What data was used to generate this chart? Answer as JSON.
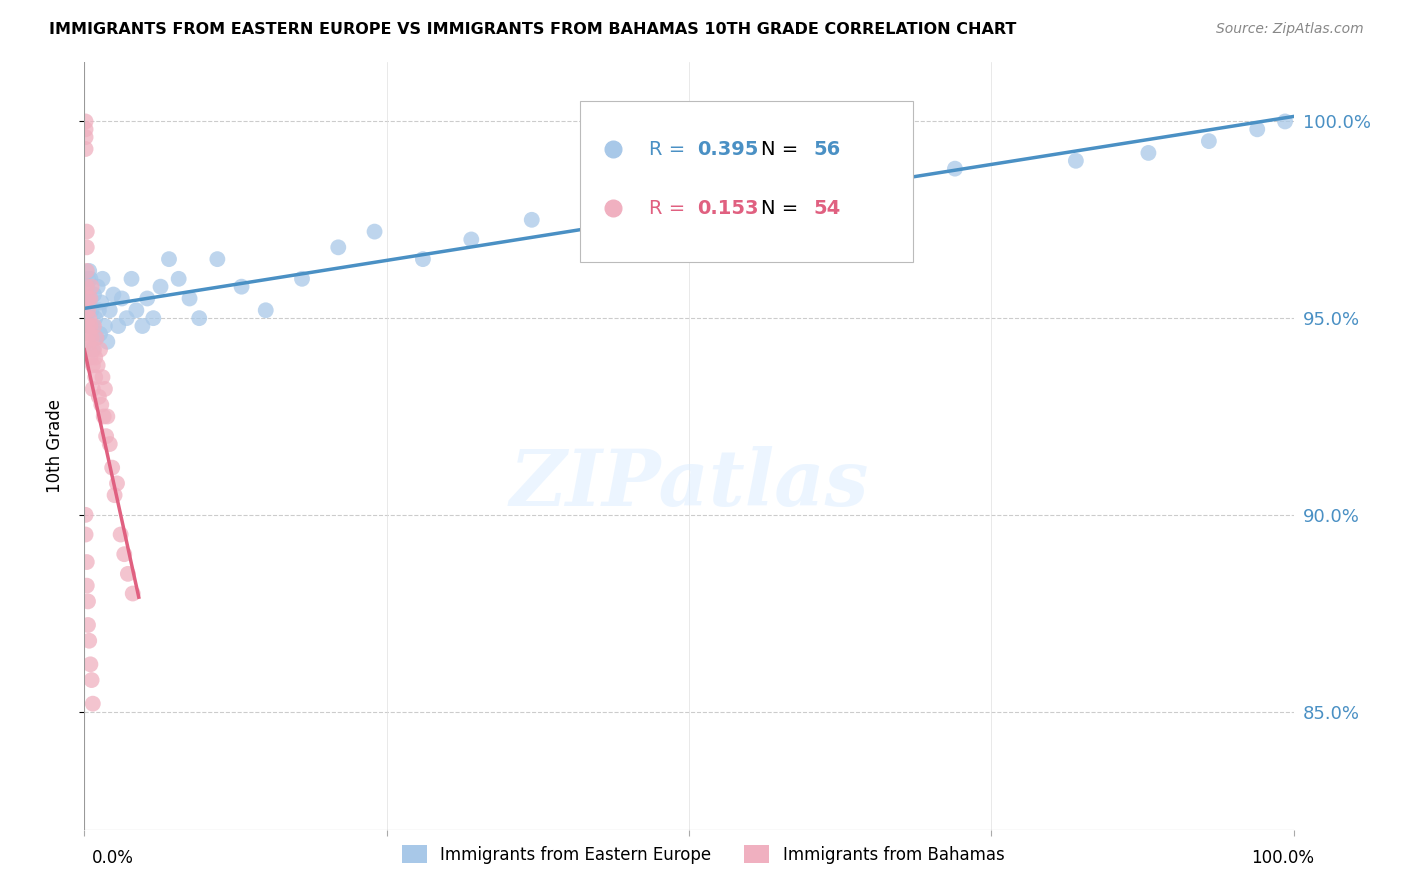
{
  "title": "IMMIGRANTS FROM EASTERN EUROPE VS IMMIGRANTS FROM BAHAMAS 10TH GRADE CORRELATION CHART",
  "source": "Source: ZipAtlas.com",
  "ylabel": "10th Grade",
  "watermark": "ZIPatlas",
  "blue_R": 0.395,
  "blue_N": 56,
  "pink_R": 0.153,
  "pink_N": 54,
  "blue_color": "#a8c8e8",
  "pink_color": "#f0b0c0",
  "blue_line_color": "#4a90c4",
  "pink_line_color": "#d04060",
  "pink_trendline_color": "#e06080",
  "legend_blue_label": "Immigrants from Eastern Europe",
  "legend_pink_label": "Immigrants from Bahamas",
  "ytick_labels": [
    "100.0%",
    "95.0%",
    "90.0%",
    "85.0%"
  ],
  "ytick_values": [
    1.0,
    0.95,
    0.9,
    0.85
  ],
  "xlim": [
    0.0,
    1.0
  ],
  "ylim": [
    0.82,
    1.015
  ],
  "blue_x": [
    0.001,
    0.002,
    0.002,
    0.003,
    0.003,
    0.004,
    0.004,
    0.005,
    0.005,
    0.006,
    0.007,
    0.007,
    0.008,
    0.009,
    0.01,
    0.011,
    0.012,
    0.013,
    0.014,
    0.015,
    0.017,
    0.019,
    0.021,
    0.024,
    0.028,
    0.031,
    0.035,
    0.039,
    0.043,
    0.048,
    0.052,
    0.057,
    0.063,
    0.07,
    0.078,
    0.087,
    0.095,
    0.11,
    0.13,
    0.15,
    0.18,
    0.21,
    0.24,
    0.28,
    0.32,
    0.37,
    0.42,
    0.48,
    0.55,
    0.63,
    0.72,
    0.82,
    0.88,
    0.93,
    0.97,
    0.993
  ],
  "blue_y": [
    0.95,
    0.955,
    0.958,
    0.953,
    0.96,
    0.948,
    0.962,
    0.955,
    0.96,
    0.952,
    0.948,
    0.942,
    0.956,
    0.95,
    0.945,
    0.958,
    0.952,
    0.946,
    0.954,
    0.96,
    0.948,
    0.944,
    0.952,
    0.956,
    0.948,
    0.955,
    0.95,
    0.96,
    0.952,
    0.948,
    0.955,
    0.95,
    0.958,
    0.965,
    0.96,
    0.955,
    0.95,
    0.965,
    0.958,
    0.952,
    0.96,
    0.968,
    0.972,
    0.965,
    0.97,
    0.975,
    0.978,
    0.98,
    0.982,
    0.985,
    0.988,
    0.99,
    0.992,
    0.995,
    0.998,
    1.0
  ],
  "pink_x": [
    0.001,
    0.001,
    0.001,
    0.001,
    0.002,
    0.002,
    0.002,
    0.002,
    0.003,
    0.003,
    0.003,
    0.003,
    0.004,
    0.004,
    0.004,
    0.005,
    0.005,
    0.005,
    0.006,
    0.006,
    0.007,
    0.007,
    0.008,
    0.008,
    0.009,
    0.009,
    0.01,
    0.011,
    0.012,
    0.013,
    0.014,
    0.015,
    0.016,
    0.017,
    0.018,
    0.019,
    0.021,
    0.023,
    0.025,
    0.027,
    0.03,
    0.033,
    0.036,
    0.04,
    0.001,
    0.001,
    0.002,
    0.002,
    0.003,
    0.003,
    0.004,
    0.005,
    0.006,
    0.007
  ],
  "pink_y": [
    1.0,
    0.998,
    0.996,
    0.993,
    0.972,
    0.968,
    0.962,
    0.958,
    0.955,
    0.952,
    0.948,
    0.944,
    0.95,
    0.946,
    0.942,
    0.955,
    0.948,
    0.94,
    0.958,
    0.945,
    0.938,
    0.932,
    0.942,
    0.948,
    0.935,
    0.94,
    0.945,
    0.938,
    0.93,
    0.942,
    0.928,
    0.935,
    0.925,
    0.932,
    0.92,
    0.925,
    0.918,
    0.912,
    0.905,
    0.908,
    0.895,
    0.89,
    0.885,
    0.88,
    0.9,
    0.895,
    0.888,
    0.882,
    0.878,
    0.872,
    0.868,
    0.862,
    0.858,
    0.852
  ]
}
